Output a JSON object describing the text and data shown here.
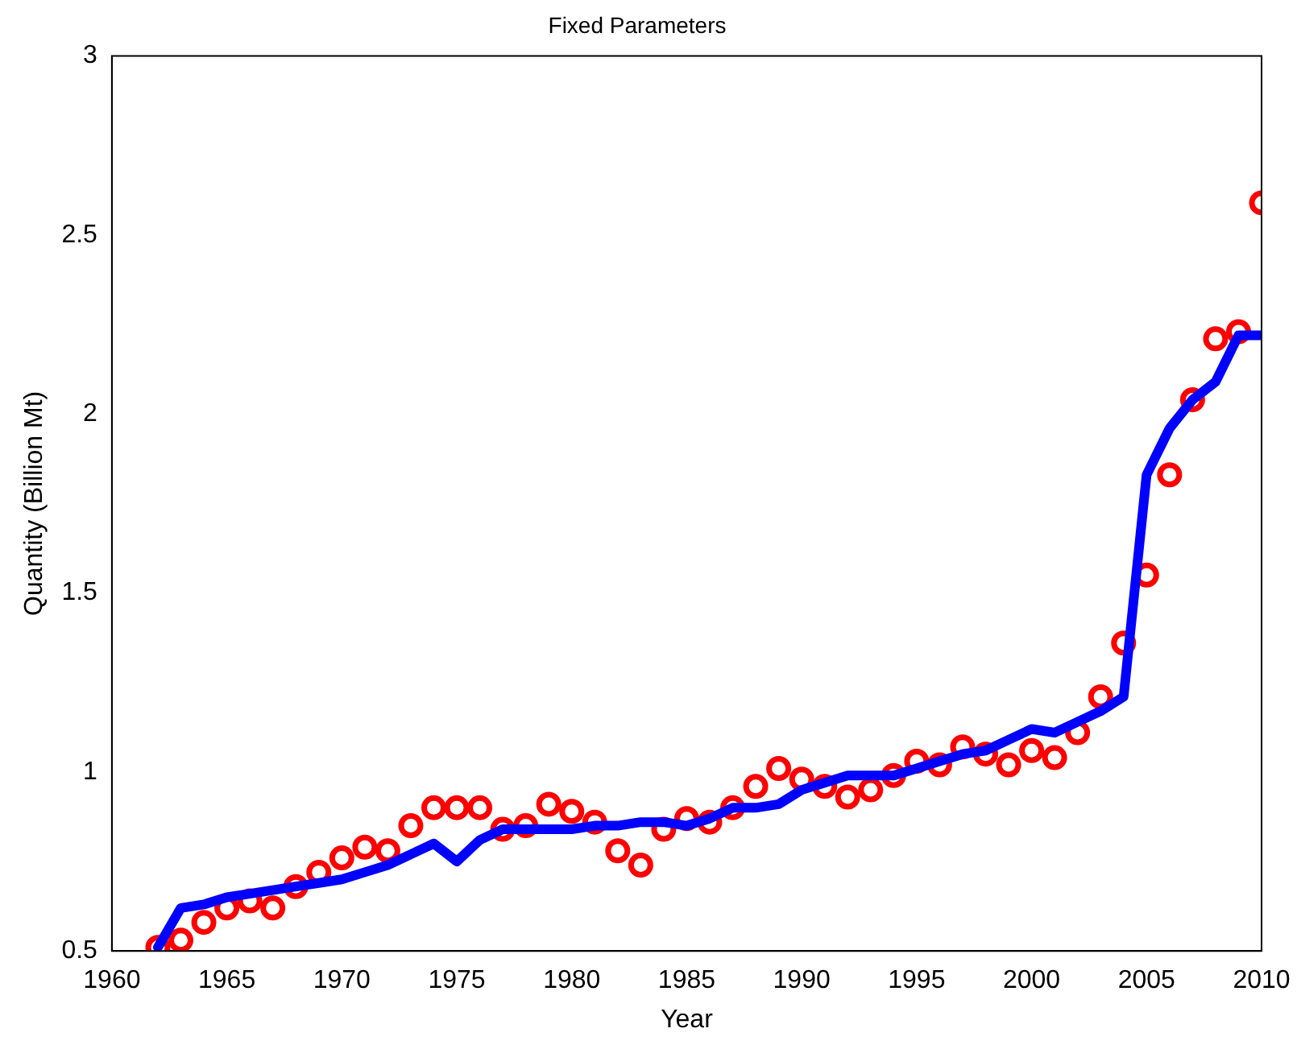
{
  "chart_data": {
    "type": "line",
    "title": "Fixed Parameters",
    "xlabel": "Year",
    "ylabel": "Quantity (Billion Mt)",
    "x": [
      1962,
      1963,
      1964,
      1965,
      1966,
      1967,
      1968,
      1969,
      1970,
      1971,
      1972,
      1973,
      1974,
      1975,
      1976,
      1977,
      1978,
      1979,
      1980,
      1981,
      1982,
      1983,
      1984,
      1985,
      1986,
      1987,
      1988,
      1989,
      1990,
      1991,
      1992,
      1993,
      1994,
      1995,
      1996,
      1997,
      1998,
      1999,
      2000,
      2001,
      2002,
      2003,
      2004,
      2005,
      2006,
      2007,
      2008,
      2009,
      2010
    ],
    "series": [
      {
        "type": "line",
        "color": "#0000ff",
        "marker": "none",
        "line_style": "solid",
        "values": [
          0.51,
          0.62,
          0.63,
          0.65,
          0.66,
          0.67,
          0.68,
          0.69,
          0.7,
          0.72,
          0.74,
          0.77,
          0.8,
          0.75,
          0.81,
          0.84,
          0.84,
          0.84,
          0.84,
          0.85,
          0.85,
          0.86,
          0.86,
          0.85,
          0.87,
          0.9,
          0.9,
          0.91,
          0.95,
          0.97,
          0.99,
          0.99,
          0.99,
          1.01,
          1.03,
          1.05,
          1.06,
          1.09,
          1.12,
          1.11,
          1.14,
          1.17,
          1.21,
          1.83,
          1.96,
          2.04,
          2.09,
          2.22,
          2.22
        ]
      },
      {
        "type": "scatter",
        "color": "#ff0000",
        "marker": "circle",
        "values": [
          0.51,
          0.53,
          0.58,
          0.62,
          0.64,
          0.62,
          0.68,
          0.72,
          0.76,
          0.79,
          0.78,
          0.85,
          0.9,
          0.9,
          0.9,
          0.84,
          0.85,
          0.91,
          0.89,
          0.86,
          0.78,
          0.74,
          0.84,
          0.87,
          0.86,
          0.9,
          0.96,
          1.01,
          0.98,
          0.96,
          0.93,
          0.95,
          0.99,
          1.03,
          1.02,
          1.07,
          1.05,
          1.02,
          1.06,
          1.04,
          1.11,
          1.21,
          1.36,
          1.55,
          1.83,
          2.04,
          2.21,
          2.23,
          2.59
        ]
      }
    ],
    "xlim": [
      1960,
      2010
    ],
    "xticks": [
      1960,
      1965,
      1970,
      1975,
      1980,
      1985,
      1990,
      1995,
      2000,
      2005,
      2010
    ],
    "ylim": [
      0.5,
      3
    ],
    "yticks": [
      0.5,
      1,
      1.5,
      2,
      2.5,
      3
    ],
    "grid": false,
    "legend": false
  }
}
